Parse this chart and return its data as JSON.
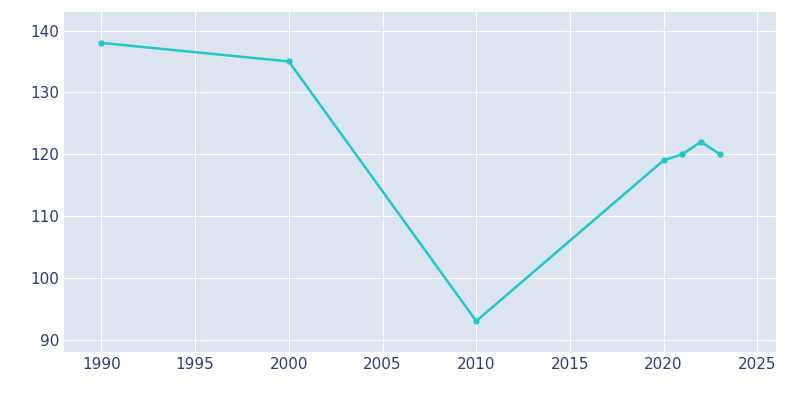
{
  "years": [
    1990,
    2000,
    2010,
    2020,
    2021,
    2022,
    2023
  ],
  "population": [
    138,
    135,
    93,
    119,
    120,
    122,
    120
  ],
  "line_color": "#20C8C8",
  "bg_color": "#FFFFFF",
  "plot_bg_color": "#DCE5EF",
  "grid_color": "#FFFFFF",
  "xlim": [
    1988,
    2026
  ],
  "ylim": [
    88,
    143
  ],
  "xticks": [
    1990,
    1995,
    2000,
    2005,
    2010,
    2015,
    2020,
    2025
  ],
  "yticks": [
    90,
    100,
    110,
    120,
    130,
    140
  ],
  "tick_color": "#2F3F6F",
  "tick_fontsize": 11
}
